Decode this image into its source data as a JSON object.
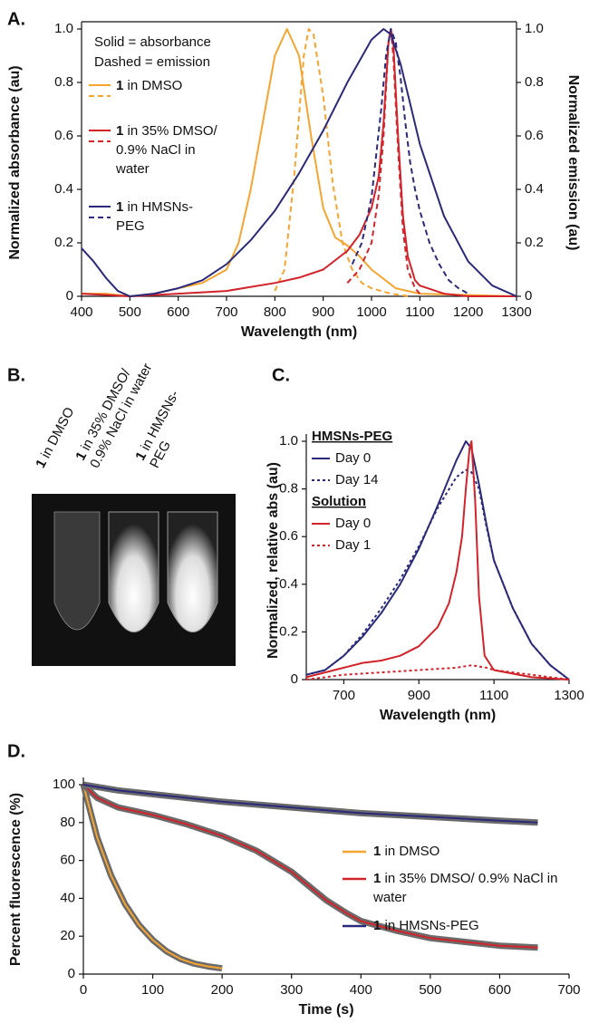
{
  "chart_data": [
    {
      "type": "line",
      "panel_label": "A.",
      "xlabel": "Wavelength (nm)",
      "ylabel": "Normalized absorbance (au)",
      "y2label": "Normalized emission (au)",
      "notes": [
        "Solid = absorbance",
        "Dashed = emission"
      ],
      "xlim": [
        400,
        1300
      ],
      "xticks": [
        400,
        500,
        600,
        700,
        800,
        900,
        1000,
        1100,
        1200,
        1300
      ],
      "ylim": [
        0,
        1
      ],
      "yticks": [
        0,
        0.2,
        0.4,
        0.6,
        0.8,
        {
          "value": 1,
          "label": "1.0"
        }
      ],
      "y2lim": [
        0,
        1
      ],
      "y2ticks": [
        0,
        0.2,
        0.4,
        0.6,
        0.8,
        {
          "value": 1,
          "label": "1.0"
        }
      ],
      "series": [
        {
          "name": "1 in DMSO",
          "color": "#f5a430",
          "x": [
            400,
            450,
            500,
            550,
            600,
            650,
            700,
            725,
            750,
            775,
            800,
            825,
            850,
            875,
            900,
            925,
            950,
            975,
            1000,
            1050,
            1100,
            1300
          ],
          "values": [
            0.01,
            0.01,
            0,
            0.01,
            0.03,
            0.05,
            0.1,
            0.2,
            0.4,
            0.65,
            0.9,
            1.0,
            0.9,
            0.6,
            0.33,
            0.22,
            0.19,
            0.15,
            0.1,
            0.03,
            0.01,
            0
          ],
          "emission_x": [
            800,
            820,
            840,
            860,
            870,
            880,
            900,
            920,
            940,
            960,
            980,
            1000,
            1040,
            1080
          ],
          "emission": [
            0.02,
            0.1,
            0.45,
            0.9,
            1.0,
            0.98,
            0.75,
            0.42,
            0.2,
            0.1,
            0.05,
            0.03,
            0.01,
            0
          ]
        },
        {
          "name": "1 in 35% DMSO/ 0.9% NaCl in water",
          "color": "#d2232a",
          "x": [
            400,
            500,
            600,
            700,
            800,
            850,
            900,
            950,
            975,
            1000,
            1015,
            1025,
            1035,
            1040,
            1045,
            1055,
            1065,
            1075,
            1090,
            1100,
            1150,
            1200,
            1300
          ],
          "values": [
            0.01,
            0,
            0.01,
            0.02,
            0.05,
            0.07,
            0.1,
            0.17,
            0.23,
            0.33,
            0.45,
            0.65,
            0.95,
            1.0,
            0.95,
            0.6,
            0.3,
            0.15,
            0.06,
            0.04,
            0.01,
            0,
            0
          ],
          "emission_x": [
            950,
            975,
            1000,
            1015,
            1025,
            1035,
            1040,
            1045,
            1055,
            1065,
            1075,
            1090,
            1100
          ],
          "emission": [
            0.05,
            0.1,
            0.2,
            0.38,
            0.6,
            0.95,
            1.0,
            0.9,
            0.55,
            0.25,
            0.1,
            0.03,
            0.01
          ]
        },
        {
          "name": "1 in HMSNs- PEG",
          "color": "#2b2a7a",
          "x": [
            400,
            425,
            450,
            475,
            500,
            550,
            600,
            650,
            700,
            750,
            800,
            850,
            900,
            950,
            1000,
            1025,
            1040,
            1060,
            1080,
            1100,
            1150,
            1200,
            1250,
            1300
          ],
          "values": [
            0.18,
            0.13,
            0.07,
            0.02,
            0,
            0.01,
            0.03,
            0.06,
            0.12,
            0.21,
            0.32,
            0.46,
            0.62,
            0.8,
            0.96,
            1.0,
            0.98,
            0.87,
            0.72,
            0.57,
            0.3,
            0.13,
            0.04,
            0
          ],
          "emission_x": [
            960,
            980,
            1000,
            1020,
            1030,
            1040,
            1050,
            1060,
            1070,
            1080,
            1090,
            1100,
            1120,
            1140,
            1160,
            1180,
            1200
          ],
          "emission": [
            0.12,
            0.2,
            0.37,
            0.7,
            0.9,
            1.0,
            0.95,
            0.82,
            0.65,
            0.5,
            0.4,
            0.32,
            0.2,
            0.12,
            0.06,
            0.03,
            0.01
          ]
        }
      ]
    },
    {
      "type": "photo",
      "panel_label": "B.",
      "labels": [
        "1 in DMSO",
        "1 in 35% DMSO/ 0.9% NaCl in water",
        "1 in HMSNs- PEG"
      ]
    },
    {
      "type": "grouped-line",
      "panel_label": "C.",
      "xlabel": "Wavelength (nm)",
      "ylabel": "Normalized, relative abs (au)",
      "xlim": [
        600,
        1300
      ],
      "xticks": [
        700,
        900,
        1100,
        1300
      ],
      "ylim": [
        0,
        1
      ],
      "yticks": [
        0,
        0.2,
        0.4,
        0.6,
        0.8,
        {
          "value": 1,
          "label": "1.0"
        }
      ],
      "groups": [
        {
          "name": "HMSNs-PEG",
          "series": [
            {
              "name": "Day 0",
              "color": "#2b2a7a",
              "style": "solid",
              "x": [
                600,
                650,
                700,
                750,
                800,
                850,
                900,
                950,
                1000,
                1025,
                1040,
                1060,
                1080,
                1100,
                1150,
                1200,
                1250,
                1300
              ],
              "values": [
                0.02,
                0.04,
                0.1,
                0.18,
                0.28,
                0.4,
                0.55,
                0.73,
                0.92,
                1.0,
                0.97,
                0.82,
                0.65,
                0.5,
                0.3,
                0.15,
                0.06,
                0
              ]
            },
            {
              "name": "Day 14",
              "color": "#2b2a7a",
              "style": "dotted",
              "x": [
                600,
                650,
                700,
                750,
                800,
                850,
                900,
                950,
                1000,
                1025,
                1040,
                1060,
                1080,
                1100,
                1150,
                1200,
                1250,
                1300
              ],
              "values": [
                0.02,
                0.04,
                0.1,
                0.19,
                0.3,
                0.42,
                0.56,
                0.72,
                0.85,
                0.88,
                0.87,
                0.8,
                0.64,
                0.5,
                0.3,
                0.15,
                0.06,
                0
              ]
            }
          ]
        },
        {
          "name": "Solution",
          "series": [
            {
              "name": "Day 0",
              "color": "#d2232a",
              "style": "solid",
              "x": [
                600,
                650,
                700,
                750,
                800,
                850,
                900,
                950,
                980,
                1000,
                1015,
                1025,
                1035,
                1040,
                1050,
                1060,
                1075,
                1100,
                1200,
                1300
              ],
              "values": [
                0.01,
                0.03,
                0.05,
                0.07,
                0.08,
                0.1,
                0.14,
                0.22,
                0.32,
                0.45,
                0.6,
                0.8,
                0.97,
                1.0,
                0.75,
                0.35,
                0.1,
                0.04,
                0.01,
                0
              ]
            },
            {
              "name": "Day 1",
              "color": "#d2232a",
              "style": "dotted",
              "x": [
                600,
                700,
                800,
                900,
                1000,
                1040,
                1080,
                1100,
                1200,
                1300
              ],
              "values": [
                0,
                0.02,
                0.03,
                0.04,
                0.05,
                0.06,
                0.05,
                0.04,
                0.02,
                0
              ]
            }
          ]
        }
      ]
    },
    {
      "type": "line",
      "panel_label": "D.",
      "xlabel": "Time (s)",
      "ylabel": "Percent fluorescence (%)",
      "xlim": [
        0,
        700
      ],
      "xticks": [
        0,
        100,
        200,
        300,
        400,
        500,
        600,
        700
      ],
      "ylim": [
        0,
        100
      ],
      "yticks": [
        0,
        20,
        40,
        60,
        80,
        100
      ],
      "series": [
        {
          "name": "1 in DMSO",
          "color": "#f5a430",
          "x": [
            0,
            20,
            40,
            60,
            80,
            100,
            120,
            140,
            160,
            180,
            200
          ],
          "values": [
            100,
            72,
            52,
            37,
            26,
            18,
            12,
            8,
            5.5,
            4,
            3
          ]
        },
        {
          "name": "1 in 35% DMSO/ 0.9% NaCl in water",
          "color": "#d2232a",
          "x": [
            0,
            20,
            50,
            100,
            150,
            200,
            250,
            300,
            330,
            350,
            380,
            400,
            450,
            500,
            550,
            600,
            655
          ],
          "values": [
            100,
            93,
            88,
            84,
            79,
            73,
            65,
            54,
            45,
            39,
            32,
            28,
            23,
            19,
            17,
            15,
            14
          ]
        },
        {
          "name": "1 in HMSNs-PEG",
          "color": "#2b2a7a",
          "x": [
            0,
            50,
            100,
            200,
            300,
            400,
            500,
            600,
            655
          ],
          "values": [
            100,
            97,
            95,
            91,
            88,
            85,
            83,
            81,
            80
          ]
        }
      ]
    }
  ]
}
